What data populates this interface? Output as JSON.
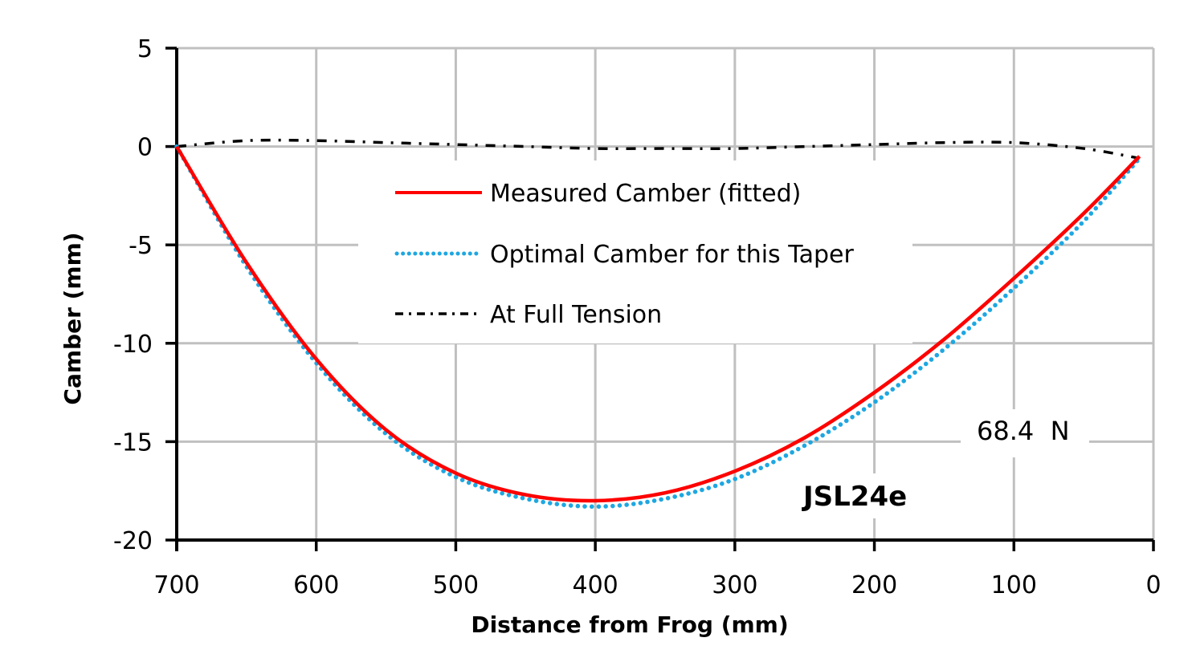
{
  "chart_data": {
    "type": "line",
    "title": "",
    "xlabel": "Distance from Frog (mm)",
    "ylabel": "Camber (mm)",
    "xlim": [
      700,
      0
    ],
    "ylim": [
      -20,
      5
    ],
    "x_reversed": true,
    "grid": true,
    "x_ticks": [
      "700",
      "600",
      "500",
      "400",
      "300",
      "200",
      "100",
      "0"
    ],
    "y_ticks": [
      "5",
      "0",
      "-5",
      "-10",
      "-15",
      "-20"
    ],
    "legend_position": "upper center (inside plot)",
    "x": [
      700,
      650,
      600,
      550,
      500,
      450,
      400,
      350,
      300,
      250,
      200,
      150,
      100,
      50,
      10
    ],
    "series": [
      {
        "name": "Measured Camber (fitted)",
        "style": "solid",
        "color": "#ff0000",
        "values": [
          0.0,
          -5.9,
          -10.8,
          -14.4,
          -16.6,
          -17.7,
          -18.0,
          -17.6,
          -16.5,
          -14.8,
          -12.5,
          -9.8,
          -6.7,
          -3.4,
          -0.5
        ]
      },
      {
        "name": "Optimal Camber for this Taper",
        "style": "dotted",
        "color": "#1ea7e1",
        "values": [
          0.0,
          -6.1,
          -11.0,
          -14.6,
          -16.8,
          -17.9,
          -18.3,
          -17.9,
          -16.9,
          -15.2,
          -13.0,
          -10.3,
          -7.2,
          -3.8,
          -0.6
        ]
      },
      {
        "name": "At Full Tension",
        "style": "dash-dot",
        "color": "#000000",
        "values": [
          0.0,
          0.3,
          0.3,
          0.2,
          0.1,
          0.0,
          -0.1,
          -0.1,
          -0.1,
          0.0,
          0.1,
          0.2,
          0.2,
          -0.1,
          -0.6
        ]
      }
    ],
    "annotations": [
      "68.4  N",
      "JSL24e"
    ]
  },
  "legend": {
    "items": [
      {
        "label": "Measured Camber (fitted)"
      },
      {
        "label": "Optimal Camber for this Taper"
      },
      {
        "label": "At Full Tension"
      }
    ]
  },
  "annotations": {
    "tension": "68.4  N",
    "model": "JSL24e"
  },
  "axes": {
    "x_title": "Distance from Frog (mm)",
    "y_title": "Camber (mm)"
  },
  "colors": {
    "measured": "#ff0000",
    "optimal": "#1ea7e1",
    "full_tension": "#000000",
    "grid": "#c0c0c0",
    "axis": "#000000"
  }
}
